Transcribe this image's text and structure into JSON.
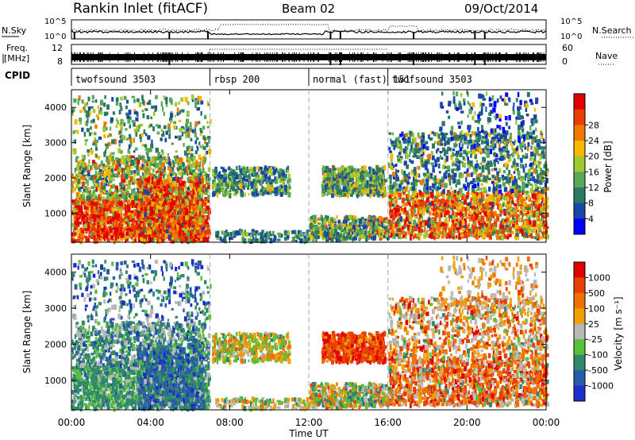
{
  "header": {
    "station": "Rankin Inlet (fitACF)",
    "beam": "Beam 02",
    "date": "09/Oct/2014"
  },
  "top_panel": {
    "left_label": "N.Sky",
    "left_ticks": [
      "10^5",
      "10^0"
    ],
    "right_ticks": [
      "10^5",
      "10^0"
    ],
    "right_label": "N.Search",
    "freq_label_1": "Freq.",
    "freq_label_2": "[MHz]",
    "freq_ticks": [
      "12",
      "8"
    ],
    "nave_ticks": [
      "60",
      "0"
    ],
    "nave_label": "Nave",
    "cpid_label": "CPID",
    "cpid_segments": [
      {
        "name": "twofsound 3503",
        "start_h": 0.0
      },
      {
        "name": "rbsp 200",
        "start_h": 7.0
      },
      {
        "name": "normal (fast) 151",
        "start_h": 12.0
      },
      {
        "name": "twofsound 3503",
        "start_h": 16.0
      }
    ]
  },
  "power_panel": {
    "ylabel": "Slant Range [km]",
    "yticks": [
      "1000",
      "2000",
      "3000",
      "4000"
    ],
    "colorbar_label": "Power [dB]",
    "colorbar_ticks": [
      "4",
      "8",
      "12",
      "16",
      "20",
      "24",
      "28"
    ]
  },
  "velocity_panel": {
    "ylabel": "Slant Range [km]",
    "yticks": [
      "1000",
      "2000",
      "3000",
      "4000"
    ],
    "colorbar_label": "Velocity [m s⁻¹]",
    "colorbar_ticks": [
      "1000",
      "500",
      "100",
      "25",
      "-25",
      "-100",
      "-500",
      "-1000"
    ]
  },
  "xaxis": {
    "label": "Time UT",
    "ticks": [
      "00:00",
      "04:00",
      "08:00",
      "12:00",
      "16:00",
      "20:00",
      "00:00"
    ]
  },
  "chart_data": [
    {
      "type": "heatmap",
      "title": "Power",
      "xlabel": "Time UT",
      "ylabel": "Slant Range [km]",
      "xlim": [
        0,
        24
      ],
      "ylim": [
        180,
        4500
      ],
      "colorbar": {
        "label": "Power [dB]",
        "range": [
          0,
          30
        ]
      },
      "colors": [
        "#0000ff",
        "#1a46a8",
        "#2a7a62",
        "#58a858",
        "#a0c830",
        "#f8b800",
        "#f07800",
        "#e84000",
        "#e00000"
      ]
    },
    {
      "type": "heatmap",
      "title": "Velocity",
      "xlabel": "Time UT",
      "ylabel": "Slant Range [km]",
      "xlim": [
        0,
        24
      ],
      "ylim": [
        180,
        4500
      ],
      "colorbar": {
        "label": "Velocity [m s⁻¹]",
        "range": [
          -1000,
          1000
        ]
      },
      "colors": [
        "#1a2ec8",
        "#2a5aa8",
        "#2e8a68",
        "#5abf3a",
        "#b8b8b8",
        "#f0a000",
        "#f07000",
        "#e84000",
        "#e00000"
      ]
    }
  ]
}
